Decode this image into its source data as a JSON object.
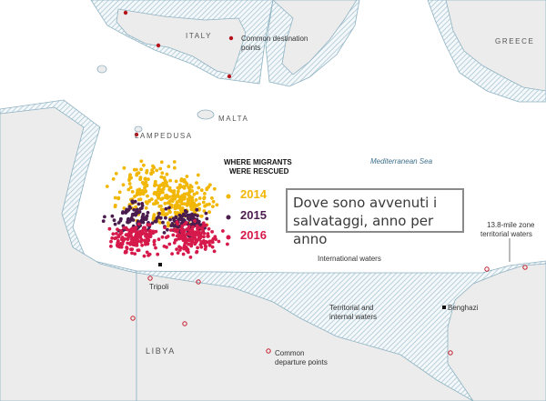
{
  "labels": {
    "italy": "ITALY",
    "malta": "MALTA",
    "lampedusa": "LAMPEDUSA",
    "greece": "GREECE",
    "libya": "LIBYA",
    "sea": "Mediterranean Sea",
    "tripoli": "Tripoli",
    "benghazi": "Benghazi",
    "international_waters": "International waters",
    "territorial_waters_1": "Territorial and",
    "territorial_waters_2": "internal waters",
    "zone_1": "13.8-mile zone",
    "zone_2": "territorial waters",
    "destination_1": "Common destination",
    "destination_2": "points",
    "departure_1": "Common",
    "departure_2": "departure points"
  },
  "legend": {
    "title_line1": "WHERE MIGRANTS",
    "title_line2": "WERE RESCUED",
    "years": [
      {
        "label": "2014",
        "color": "#f2b705"
      },
      {
        "label": "2015",
        "color": "#4b1c4e"
      },
      {
        "label": "2016",
        "color": "#d6194b"
      }
    ]
  },
  "caption": {
    "line1": "Dove sono avvenuti i",
    "line2": "salvataggi, anno per anno"
  },
  "colors": {
    "water": "#ffffff",
    "land": "#ececec",
    "hatch": "#a9c7d4",
    "coast": "#8fb2c2",
    "destination_point": "#b5121b",
    "departure_point": "#c41a2b"
  }
}
